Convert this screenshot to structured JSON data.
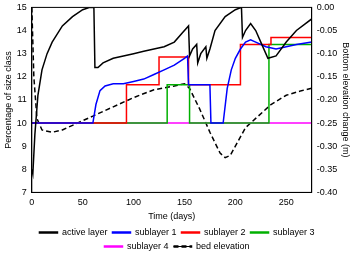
{
  "chart_data": {
    "type": "line",
    "x_label": "Time (days)",
    "y_label": "Percentage of size class",
    "y2_label": "Bottom elevation change (m)",
    "xlim": [
      0,
      275
    ],
    "xticks": [
      0,
      50,
      100,
      150,
      200,
      250
    ],
    "ylim": [
      7,
      15
    ],
    "yticks": [
      7,
      8,
      9,
      10,
      11,
      12,
      13,
      14,
      15
    ],
    "y2lim": [
      -0.4,
      0
    ],
    "y2ticks": [
      {
        "value": -0.4,
        "label": "-0.40"
      },
      {
        "value": -0.35,
        "label": "-0.35"
      },
      {
        "value": -0.3,
        "label": "-0.30"
      },
      {
        "value": -0.25,
        "label": "-0.25"
      },
      {
        "value": -0.2,
        "label": "-0.20"
      },
      {
        "value": -0.15,
        "label": "-0.15"
      },
      {
        "value": -0.1,
        "label": "-0.10"
      },
      {
        "value": -0.05,
        "label": "-0.05"
      },
      {
        "value": 0,
        "label": "0.00"
      }
    ],
    "grid": false,
    "legend": "bottom",
    "series": [
      {
        "name": "active layer",
        "color": "#000000",
        "line_style": "solid",
        "x": [
          0,
          1,
          3,
          6,
          10,
          15,
          20,
          30,
          40,
          50,
          57,
          61,
          62,
          65,
          70,
          80,
          90,
          100,
          110,
          120,
          130,
          140,
          148,
          154,
          155,
          158,
          162,
          163,
          166,
          171,
          172,
          175,
          180,
          190,
          200,
          206,
          207,
          210,
          215,
          220,
          225,
          232,
          240,
          250,
          260,
          275
        ],
        "values": [
          8.0,
          7.8,
          9.5,
          11.2,
          12.3,
          13.0,
          13.5,
          14.2,
          14.6,
          14.9,
          15.0,
          15.0,
          12.4,
          12.4,
          12.6,
          12.8,
          12.9,
          13.0,
          13.1,
          13.2,
          13.3,
          13.5,
          13.9,
          14.2,
          12.9,
          13.2,
          13.4,
          12.6,
          13.0,
          13.3,
          12.8,
          13.2,
          14.0,
          14.6,
          14.9,
          15.0,
          13.7,
          14.0,
          14.3,
          14.0,
          13.5,
          12.8,
          12.9,
          13.5,
          14.0,
          14.5
        ]
      },
      {
        "name": "sublayer 1",
        "color": "#0000ff",
        "line_style": "solid",
        "x": [
          0,
          60,
          63,
          67,
          72,
          80,
          90,
          100,
          110,
          120,
          130,
          140,
          150,
          153,
          154,
          175,
          176,
          188,
          192,
          196,
          200,
          205,
          210,
          215,
          220,
          230,
          240,
          250,
          260,
          275
        ],
        "values": [
          10,
          10,
          10.8,
          11.4,
          11.6,
          11.7,
          11.7,
          11.8,
          11.9,
          12.1,
          12.3,
          12.5,
          12.8,
          12.9,
          11.65,
          11.65,
          10,
          10,
          11.5,
          12.3,
          12.8,
          13.2,
          13.5,
          13.6,
          13.5,
          13.3,
          13.2,
          13.3,
          13.4,
          13.5
        ]
      },
      {
        "name": "sublayer 2",
        "color": "#ff0000",
        "line_style": "solid",
        "x": [
          0,
          93,
          93,
          125,
          125,
          154,
          154,
          205,
          205,
          235,
          235,
          275
        ],
        "values": [
          10,
          10,
          11.65,
          11.65,
          12.85,
          12.85,
          11.65,
          11.65,
          13.4,
          13.4,
          13.7,
          13.7
        ]
      },
      {
        "name": "sublayer 3",
        "color": "#00b000",
        "line_style": "solid",
        "x": [
          0,
          133,
          133,
          155,
          155,
          233,
          233,
          275
        ],
        "values": [
          10,
          10,
          11.65,
          11.65,
          10,
          10,
          13.4,
          13.4
        ]
      },
      {
        "name": "sublayer 4",
        "color": "#ff00ff",
        "line_style": "solid",
        "x": [
          0,
          275
        ],
        "values": [
          10,
          10
        ]
      },
      {
        "name": "bed elevation",
        "color": "#000000",
        "line_style": "dashed",
        "axis": "y2",
        "x": [
          0,
          2,
          5,
          10,
          20,
          30,
          40,
          60,
          80,
          100,
          120,
          140,
          150,
          155,
          165,
          175,
          185,
          190,
          195,
          200,
          210,
          220,
          235,
          250,
          265,
          275
        ],
        "values": [
          0,
          -0.15,
          -0.24,
          -0.265,
          -0.27,
          -0.265,
          -0.255,
          -0.235,
          -0.215,
          -0.195,
          -0.178,
          -0.17,
          -0.165,
          -0.175,
          -0.22,
          -0.27,
          -0.315,
          -0.325,
          -0.32,
          -0.3,
          -0.26,
          -0.24,
          -0.21,
          -0.19,
          -0.18,
          -0.175
        ]
      }
    ]
  }
}
